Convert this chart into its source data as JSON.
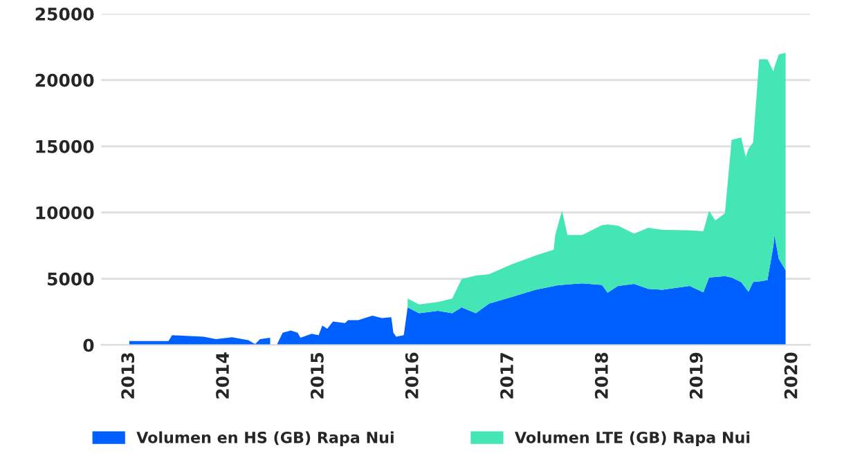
{
  "chart_data": {
    "type": "area",
    "stacked": true,
    "x": [
      "2013-01-01",
      "2013-06-01",
      "2013-06-15",
      "2013-10-15",
      "2013-12-01",
      "2014-02-01",
      "2014-04-05",
      "2014-05-01",
      "2014-05-20",
      "2014-06-28",
      "2014-07-15",
      "2014-07-26",
      "2014-08-15",
      "2014-09-16",
      "2014-10-12",
      "2014-10-23",
      "2014-12-05",
      "2015-01-01",
      "2015-01-15",
      "2015-02-03",
      "2015-02-25",
      "2015-04-13",
      "2015-04-24",
      "2015-06-03",
      "2015-07-27",
      "2015-09-02",
      "2015-10-08",
      "2015-10-16",
      "2015-10-27",
      "2015-11-25",
      "2015-12-10",
      "2016-01-23",
      "2016-04-05",
      "2016-05-30",
      "2016-07-05",
      "2016-08-29",
      "2016-10-19",
      "2017-01-12",
      "2017-04-16",
      "2017-06-25",
      "2017-07-01",
      "2017-07-27",
      "2017-08-17",
      "2017-10-13",
      "2017-12-28",
      "2018-01-19",
      "2018-02-28",
      "2018-05-01",
      "2018-06-25",
      "2018-08-18",
      "2018-12-01",
      "2019-01-23",
      "2019-02-14",
      "2019-03-10",
      "2019-04-16",
      "2019-05-12",
      "2019-06-18",
      "2019-07-05",
      "2019-07-16",
      "2019-08-03",
      "2019-08-26",
      "2019-09-27",
      "2019-10-20",
      "2019-10-24",
      "2019-11-10",
      "2019-12-06"
    ],
    "series": [
      {
        "name": "Volumen en HS (GB) Rapa Nui",
        "color": "#0060ff",
        "values": [
          300,
          300,
          740,
          630,
          440,
          590,
          370,
          70,
          440,
          550,
          null,
          110,
          920,
          1100,
          920,
          550,
          850,
          740,
          1470,
          1220,
          1770,
          1660,
          1880,
          1880,
          2210,
          2030,
          2100,
          920,
          630,
          740,
          2840,
          2400,
          2580,
          2400,
          2840,
          2400,
          3130,
          3610,
          4170,
          4450,
          4480,
          4540,
          4580,
          4650,
          4540,
          3950,
          4460,
          4610,
          4240,
          4170,
          4460,
          3980,
          5090,
          5130,
          5200,
          5100,
          4750,
          4300,
          4020,
          4760,
          4800,
          4900,
          7500,
          8300,
          6500,
          5640
        ]
      },
      {
        "name": "Volumen LTE (GB) Rapa Nui",
        "color": "#45e6b6",
        "values": [
          null,
          null,
          null,
          null,
          null,
          null,
          null,
          null,
          null,
          null,
          null,
          null,
          null,
          null,
          null,
          null,
          null,
          null,
          null,
          null,
          null,
          null,
          null,
          null,
          null,
          null,
          null,
          null,
          null,
          null,
          660,
          660,
          660,
          1100,
          2140,
          2840,
          2220,
          2470,
          2580,
          2740,
          3820,
          5600,
          3720,
          3650,
          4510,
          5150,
          4540,
          3800,
          4610,
          4530,
          4200,
          4610,
          5050,
          4270,
          4750,
          10390,
          10920,
          9900,
          10780,
          10540,
          16770,
          16670,
          13150,
          12700,
          15440,
          16410
        ]
      }
    ],
    "xlim": [
      "2012-09-15",
      "2020-03-10"
    ],
    "xticks": [
      "2013",
      "2014",
      "2015",
      "2016",
      "2017",
      "2018",
      "2019",
      "2020"
    ],
    "ylim": [
      0,
      25000
    ],
    "yticks": [
      0,
      5000,
      10000,
      15000,
      20000,
      25000
    ],
    "grid": "y",
    "legend": "bottom"
  }
}
